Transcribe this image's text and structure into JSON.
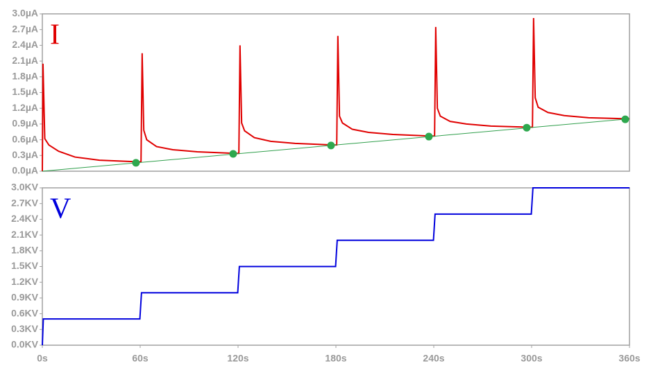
{
  "chart_data": [
    {
      "type": "line",
      "annotation": "I",
      "annotation_color": "#e00000",
      "xlim": [
        0,
        360
      ],
      "ylim": [
        0,
        3.0
      ],
      "yticks": [
        {
          "value": 0,
          "label": "0.0µA"
        },
        {
          "value": 0.3,
          "label": "0.3µA"
        },
        {
          "value": 0.6,
          "label": "0.6µA"
        },
        {
          "value": 0.9,
          "label": "0.9µA"
        },
        {
          "value": 1.2,
          "label": "1.2µA"
        },
        {
          "value": 1.5,
          "label": "1.5µA"
        },
        {
          "value": 1.8,
          "label": "1.8µA"
        },
        {
          "value": 2.1,
          "label": "2.1µA"
        },
        {
          "value": 2.4,
          "label": "2.4µA"
        },
        {
          "value": 2.7,
          "label": "2.7µA"
        },
        {
          "value": 3.0,
          "label": "3.0µA"
        }
      ],
      "series": [
        {
          "type": "line",
          "color": "#e00000",
          "x": [
            0,
            0.4,
            1.5,
            4,
            10,
            20,
            35,
            58,
            60.5,
            61.2,
            62.2,
            64,
            70,
            80,
            95,
            118,
            120.5,
            121.2,
            122.2,
            124,
            130,
            140,
            155,
            178,
            180.5,
            181.2,
            182.2,
            184,
            190,
            200,
            215,
            238,
            240.5,
            241.2,
            242.2,
            244,
            250,
            260,
            275,
            298,
            300.5,
            301.2,
            302.2,
            304,
            310,
            320,
            335,
            358,
            360
          ],
          "values": [
            0,
            2.05,
            0.62,
            0.5,
            0.38,
            0.27,
            0.21,
            0.18,
            0.18,
            2.25,
            0.78,
            0.6,
            0.47,
            0.41,
            0.37,
            0.34,
            0.34,
            2.4,
            0.92,
            0.77,
            0.64,
            0.57,
            0.53,
            0.5,
            0.5,
            2.58,
            1.05,
            0.92,
            0.8,
            0.74,
            0.7,
            0.67,
            0.67,
            2.75,
            1.2,
            1.05,
            0.95,
            0.9,
            0.86,
            0.84,
            0.84,
            2.92,
            1.4,
            1.22,
            1.12,
            1.06,
            1.02,
            1.0,
            1.0
          ]
        },
        {
          "type": "line",
          "color": "#2e9e4a",
          "x": [
            0,
            360
          ],
          "values": [
            0,
            1.0
          ]
        },
        {
          "type": "scatter",
          "color": "#2ea84e",
          "x": [
            57.4,
            117,
            177,
            237,
            297,
            357.4
          ],
          "values": [
            0.16,
            0.33,
            0.49,
            0.66,
            0.83,
            0.99
          ]
        }
      ]
    },
    {
      "type": "line",
      "annotation": "V",
      "annotation_color": "#0000dd",
      "xlim": [
        0,
        360
      ],
      "ylim": [
        0,
        3.0
      ],
      "xticks": [
        {
          "value": 0,
          "label": "0s"
        },
        {
          "value": 60,
          "label": "60s"
        },
        {
          "value": 120,
          "label": "120s"
        },
        {
          "value": 180,
          "label": "180s"
        },
        {
          "value": 240,
          "label": "240s"
        },
        {
          "value": 300,
          "label": "300s"
        },
        {
          "value": 360,
          "label": "360s"
        }
      ],
      "yticks": [
        {
          "value": 0,
          "label": "0.0KV"
        },
        {
          "value": 0.3,
          "label": "0.3KV"
        },
        {
          "value": 0.6,
          "label": "0.6KV"
        },
        {
          "value": 0.9,
          "label": "0.9KV"
        },
        {
          "value": 1.2,
          "label": "1.2KV"
        },
        {
          "value": 1.5,
          "label": "1.5KV"
        },
        {
          "value": 1.8,
          "label": "1.8KV"
        },
        {
          "value": 2.1,
          "label": "2.1KV"
        },
        {
          "value": 2.4,
          "label": "2.4KV"
        },
        {
          "value": 2.7,
          "label": "2.7KV"
        },
        {
          "value": 3.0,
          "label": "3.0KV"
        }
      ],
      "series": [
        {
          "type": "line",
          "color": "#0000dd",
          "x": [
            0,
            0.6,
            59.8,
            60.8,
            119.8,
            120.8,
            179.8,
            180.8,
            239.8,
            240.8,
            299.8,
            300.8,
            360
          ],
          "values": [
            0,
            0.5,
            0.5,
            1.0,
            1.0,
            1.5,
            1.5,
            2.0,
            2.0,
            2.5,
            2.5,
            3.0,
            3.0
          ]
        }
      ]
    }
  ]
}
